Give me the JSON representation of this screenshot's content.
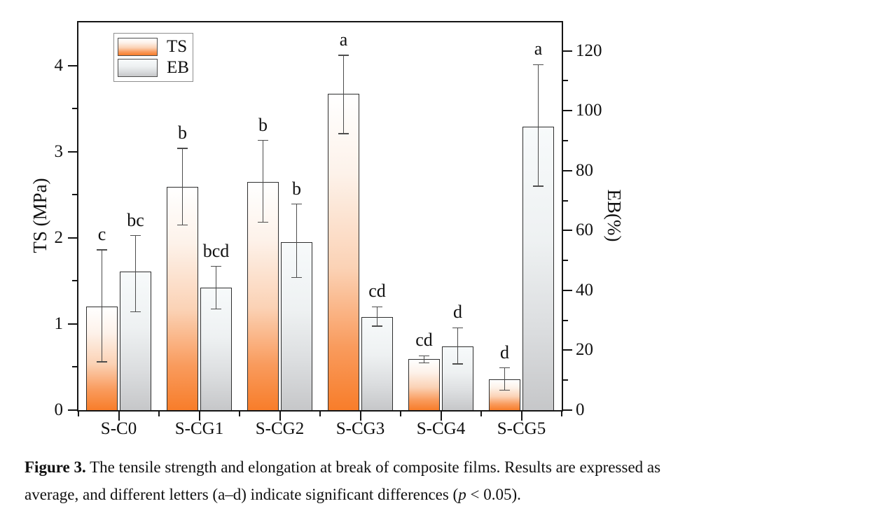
{
  "caption": {
    "label": "Figure 3.",
    "line1_rest": " The tensile strength and elongation at break of composite films. Results are expressed as",
    "line2_pre": "average, and different letters (a–d) indicate significant differences (",
    "line2_p": "p",
    "line2_post": " < 0.05)."
  },
  "chart_data": {
    "type": "bar",
    "title": "",
    "categories": [
      "S-C0",
      "S-CG1",
      "S-CG2",
      "S-CG3",
      "S-CG4",
      "S-CG5"
    ],
    "series": [
      {
        "name": "TS",
        "axis": "left",
        "unit": "MPa",
        "values": [
          1.2,
          2.59,
          2.65,
          3.67,
          0.59,
          0.36
        ],
        "error_plus": [
          0.66,
          0.45,
          0.48,
          0.45,
          0.04,
          0.13
        ],
        "error_minus": [
          0.64,
          0.44,
          0.47,
          0.46,
          0.04,
          0.13
        ],
        "sig_letters": [
          "c",
          "b",
          "b",
          "a",
          "cd",
          "d"
        ]
      },
      {
        "name": "EB",
        "axis": "right",
        "unit": "%",
        "values": [
          46.4,
          40.8,
          56.2,
          31.2,
          21.2,
          94.6
        ],
        "error_plus": [
          11.9,
          7.2,
          12.6,
          3.3,
          6.3,
          20.8
        ],
        "error_minus": [
          13.5,
          7.0,
          11.9,
          3.2,
          5.8,
          19.8
        ],
        "sig_letters": [
          "bc",
          "bcd",
          "b",
          "cd",
          "d",
          "a"
        ]
      }
    ],
    "left_axis": {
      "label": "TS (MPa)",
      "ticks": [
        0,
        1,
        2,
        3,
        4
      ],
      "minor_ticks": [
        0.5,
        1.5,
        2.5,
        3.5
      ],
      "max": 4.5
    },
    "right_axis": {
      "label": "EB(%)",
      "ticks": [
        0,
        20,
        40,
        60,
        80,
        100,
        120
      ],
      "minor_ticks": [
        10,
        30,
        50,
        70,
        90,
        110
      ],
      "max": 129.5
    },
    "legend": {
      "position": "top-left",
      "entries": [
        "TS",
        "EB"
      ]
    },
    "grid": false,
    "colors": {
      "ts_top": "#ffffff",
      "ts_bottom": "#f87d2a",
      "eb_top": "#f7fafb",
      "eb_bottom": "#c6c7c9",
      "bar_border": "#2e2e2e",
      "axis": "#151515",
      "error_bar": "#4d4d4d",
      "text": "#111111"
    }
  }
}
